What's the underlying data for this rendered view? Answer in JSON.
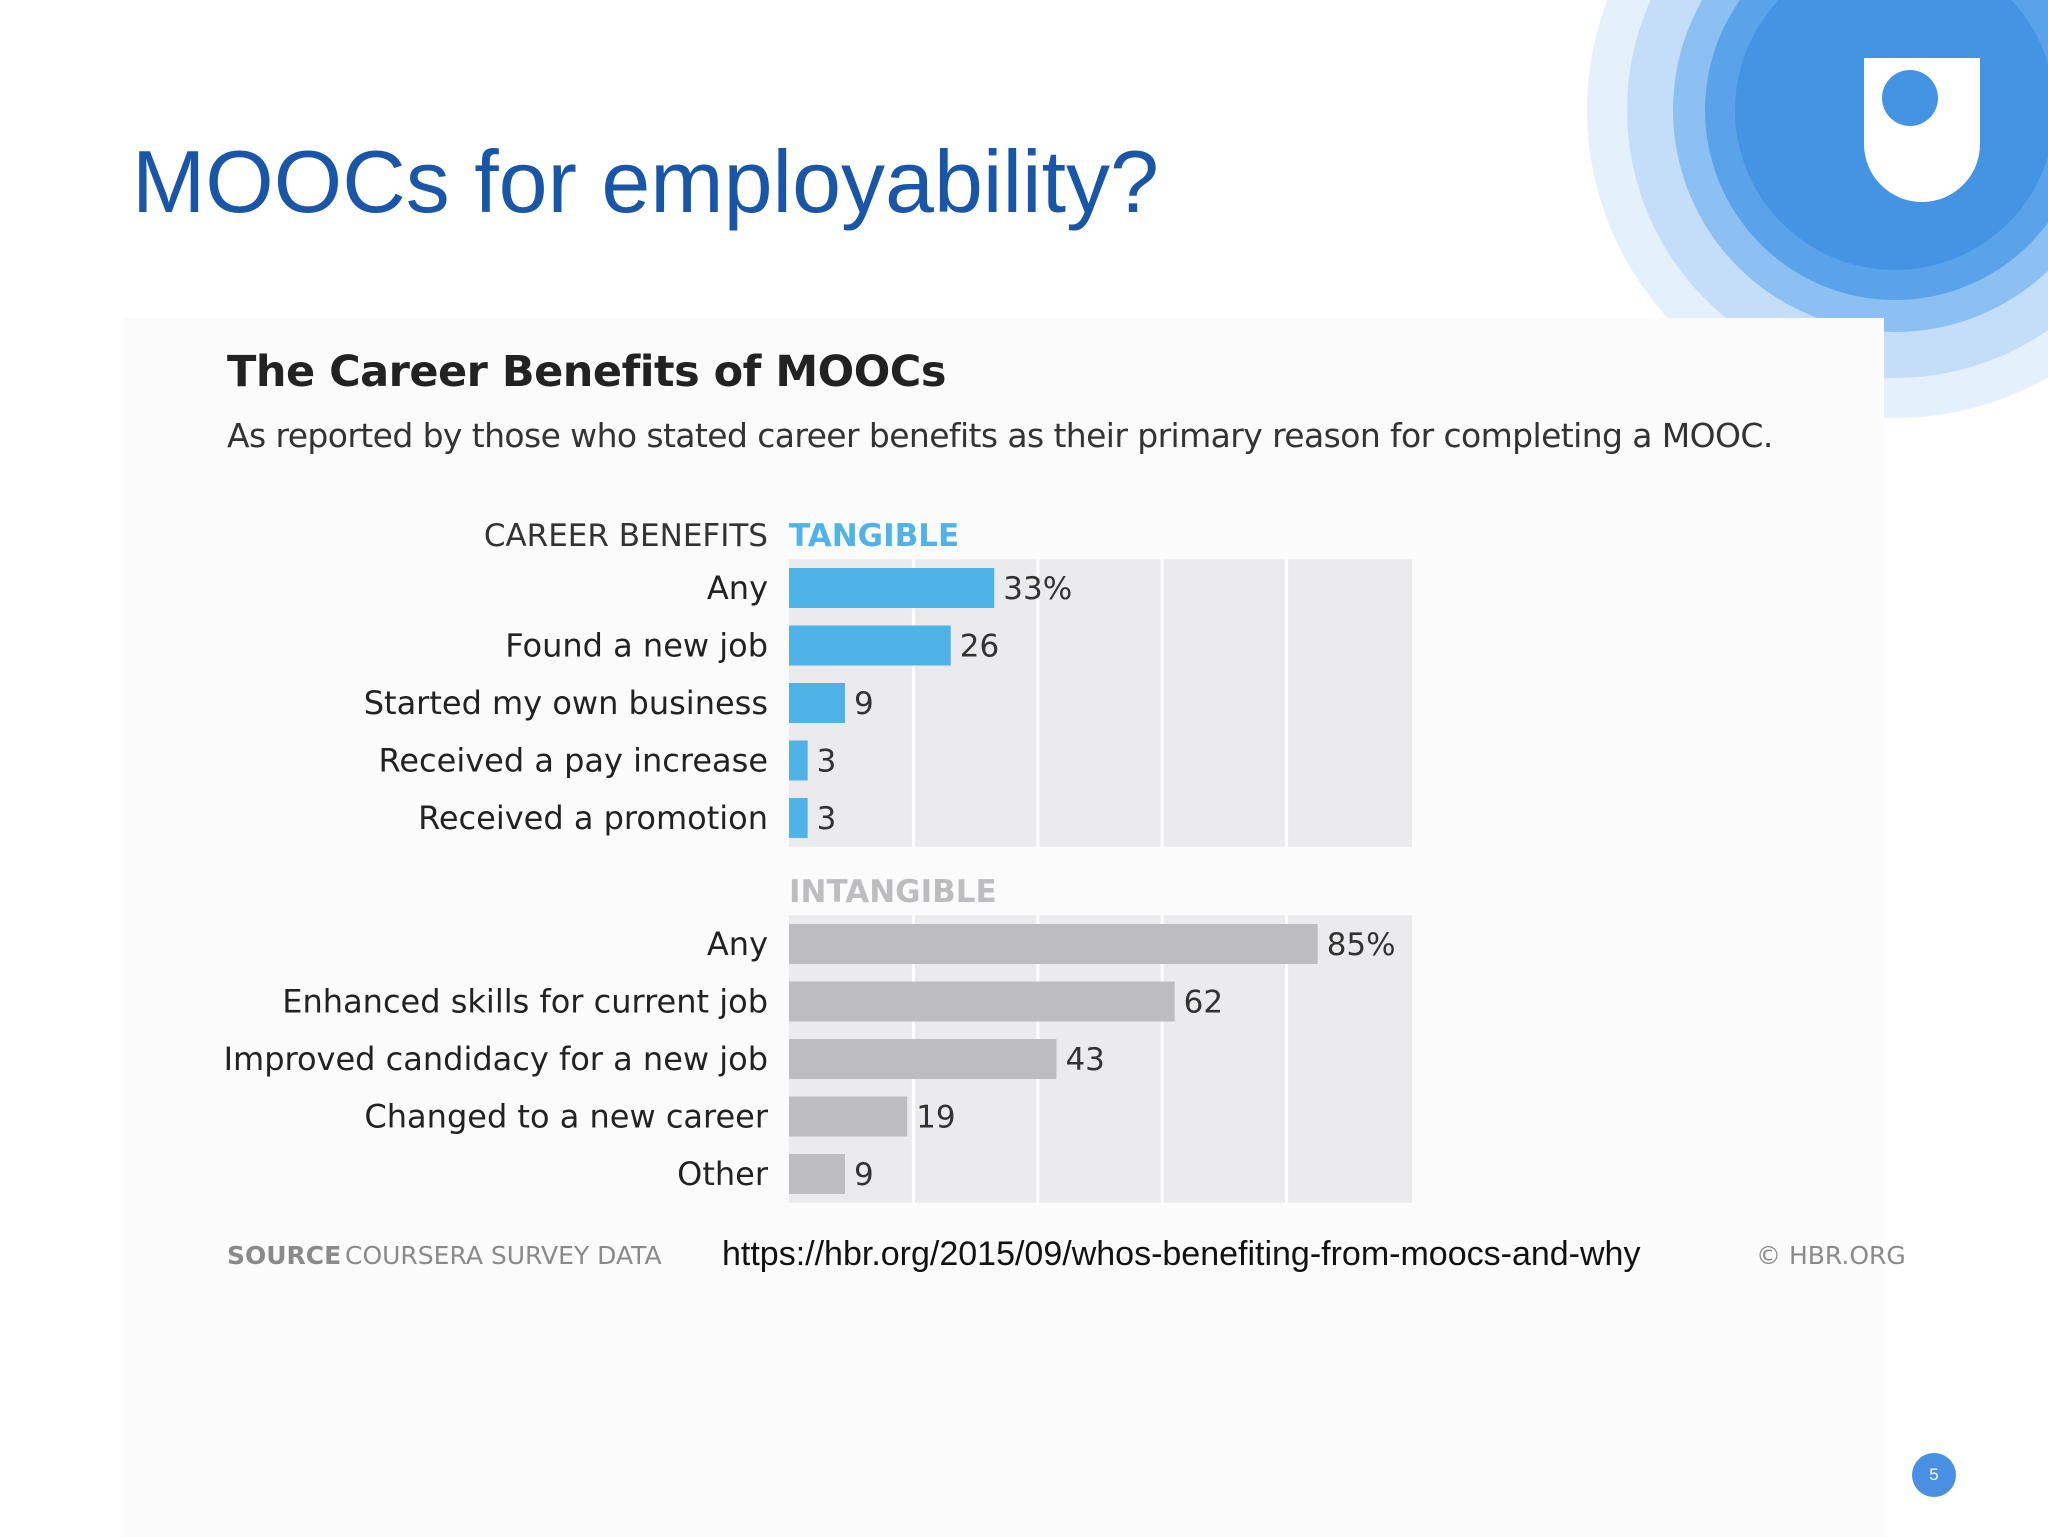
{
  "slide": {
    "title": "MOOCs for employability?",
    "page_number": "5"
  },
  "figure": {
    "title": "The Career Benefits of MOOCs",
    "subtitle": "As reported by those who stated career benefits as their primary reason for completing a MOOC.",
    "source_label": "SOURCE",
    "source_value": "COURSERA SURVEY DATA",
    "copyright": "© HBR.ORG"
  },
  "link": {
    "url": "https://hbr.org/2015/09/whos-benefiting-from-moocs-and-why"
  },
  "colors": {
    "title_blue": "#1a56a8",
    "tangible": "#4fb3e8",
    "intangible": "#bdbdbf",
    "track": "#ebebed",
    "logo_blue": "#4a90e2"
  },
  "icons": {
    "logo": "open-university-shield-icon"
  },
  "chart_data": {
    "type": "bar",
    "orientation": "horizontal",
    "header_label": "CAREER BENEFITS",
    "xlim": [
      0,
      100
    ],
    "grid": true,
    "series": [
      {
        "name": "TANGIBLE",
        "color": "#4fb3e8",
        "categories": [
          "Any",
          "Found a new job",
          "Started my own business",
          "Received a pay increase",
          "Received a promotion"
        ],
        "values": [
          33,
          26,
          9,
          3,
          3
        ],
        "value_labels": [
          "33%",
          "26",
          "9",
          "3",
          "3"
        ]
      },
      {
        "name": "INTANGIBLE",
        "color": "#bdbdbf",
        "categories": [
          "Any",
          "Enhanced skills for current job",
          "Improved candidacy for a new job",
          "Changed to a new career",
          "Other"
        ],
        "values": [
          85,
          62,
          43,
          19,
          9
        ],
        "value_labels": [
          "85%",
          "62",
          "43",
          "19",
          "9"
        ]
      }
    ]
  }
}
